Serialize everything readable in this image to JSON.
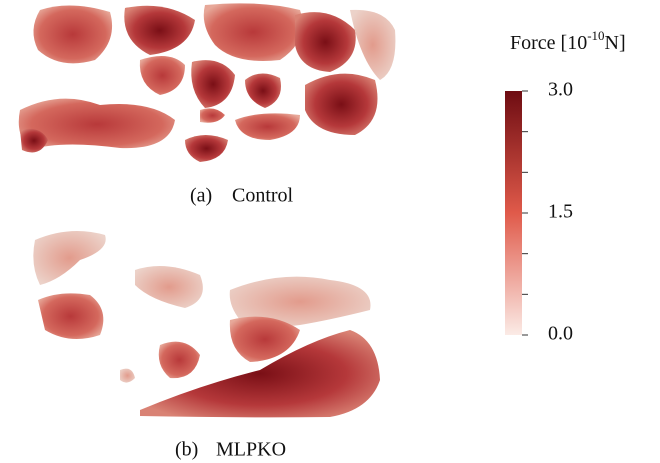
{
  "panels": [
    {
      "letter": "(a)",
      "caption": "Control"
    },
    {
      "letter": "(b)",
      "caption": "MLPKO"
    }
  ],
  "colorbar": {
    "title": {
      "text": "Force [10",
      "superscript": "-10",
      "suffix": "N]"
    },
    "range": [
      0,
      3
    ],
    "low_color": "#fbebe6",
    "high_color": "#6e0c12",
    "ticks": [
      {
        "value": 0,
        "label": "0.0"
      },
      {
        "value": 1.5,
        "label": "1.5"
      },
      {
        "value": 3,
        "label": "3.0"
      }
    ],
    "minor_ticks": [
      0.5,
      1,
      2,
      2.5
    ]
  }
}
